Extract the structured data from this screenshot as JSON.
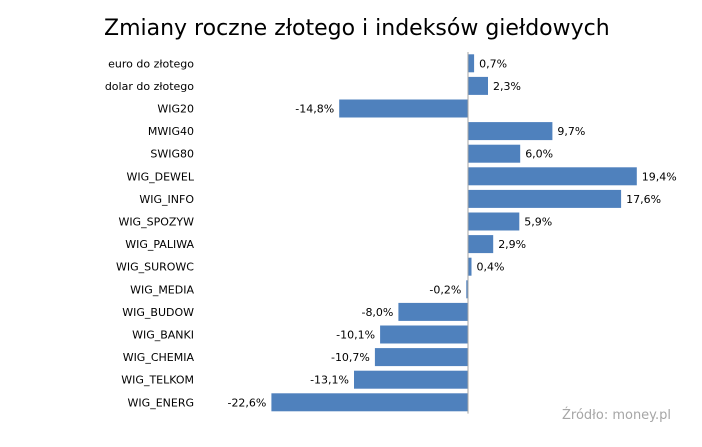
{
  "chart_data": {
    "type": "bar",
    "orientation": "horizontal",
    "title": "Zmiany roczne złotego i indeksów giełdowych",
    "source": "Źródło: money.pl",
    "bar_color": "#4f81bd",
    "categories": [
      "euro do złotego",
      "dolar do złotego",
      "WIG20",
      "MWIG40",
      "SWIG80",
      "WIG_DEWEL",
      "WIG_INFO",
      "WIG_SPOZYW",
      "WIG_PALIWA",
      "WIG_SUROWC",
      "WIG_MEDIA",
      "WIG_BUDOW",
      "WIG_BANKI",
      "WIG_CHEMIA",
      "WIG_TELKOM",
      "WIG_ENERG"
    ],
    "values": [
      0.7,
      2.3,
      -14.8,
      9.7,
      6.0,
      19.4,
      17.6,
      5.9,
      2.9,
      0.4,
      -0.2,
      -8.0,
      -10.1,
      -10.7,
      -13.1,
      -22.6
    ],
    "value_labels": [
      "0,7%",
      "2,3%",
      "-14,8%",
      "9,7%",
      "6,0%",
      "19,4%",
      "17,6%",
      "5,9%",
      "2,9%",
      "0,4%",
      "-0,2%",
      "-8,0%",
      "-10,1%",
      "-10,7%",
      "-13,1%",
      "-22,6%"
    ],
    "unit": "%",
    "grid": false,
    "legend": "none"
  }
}
